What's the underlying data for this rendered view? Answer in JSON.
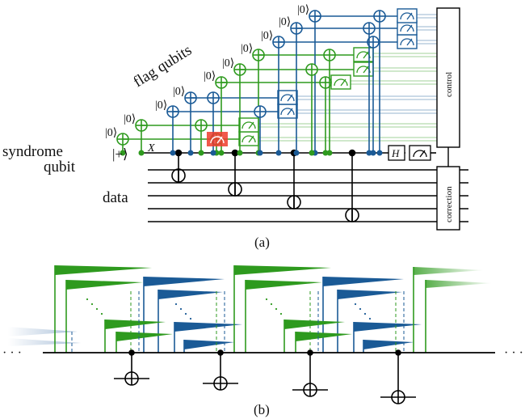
{
  "panel_a": {
    "caption": "(a)",
    "flag_label": "flag qubits",
    "syndrome_label_1": "syndrome",
    "syndrome_label_2": "qubit",
    "plus_state": "|+⟩",
    "zero_state": "|0⟩",
    "error_mark": "X",
    "data_label": "data",
    "hadamard": "H",
    "control_box": "control",
    "correction_box": "correction"
  },
  "panel_b": {
    "caption": "(b)",
    "ellipsis": "· · ·"
  },
  "colors": {
    "green": "#2e9a1e",
    "blue": "#1a5a96",
    "error": "#ee3b2b",
    "black": "#000000"
  }
}
